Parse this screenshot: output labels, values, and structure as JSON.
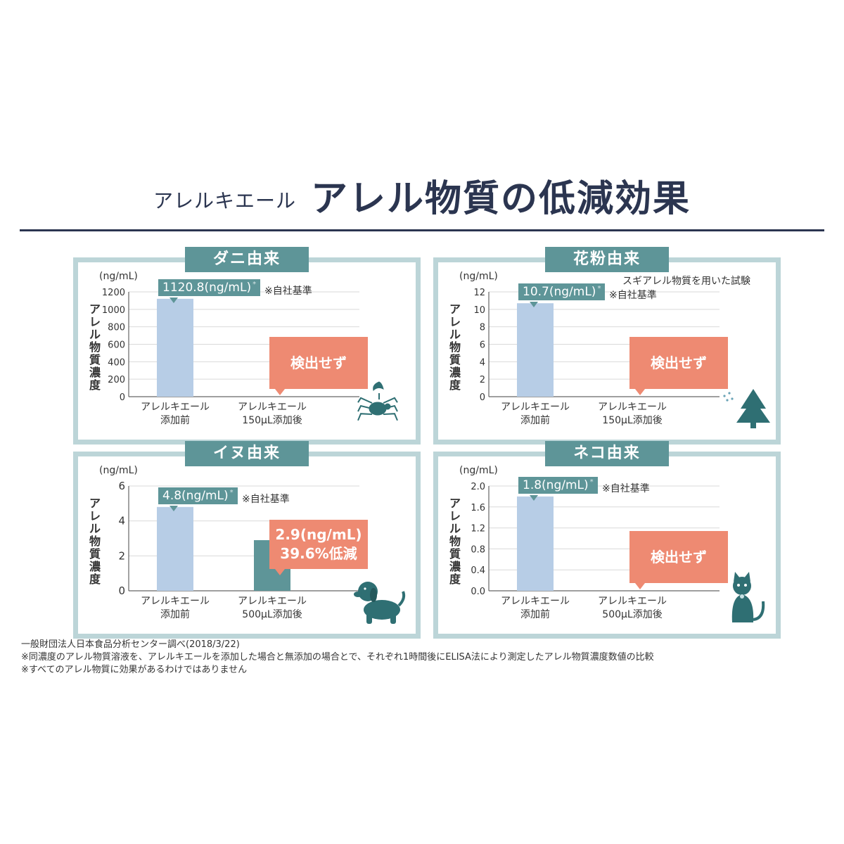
{
  "header": {
    "subtitle": "アレルキエール",
    "title": "アレル物質の低減効果"
  },
  "colors": {
    "navy": "#2b3550",
    "teal": "#5e9598",
    "panel_border": "#bcd5d8",
    "bar_before": "#b7cde6",
    "bar_after": "#5e9598",
    "badge": "#ee8a72"
  },
  "chart_data": [
    {
      "type": "bar",
      "title": "ダニ由来",
      "unit": "(ng/mL)",
      "ylabel": "アレル物質濃度",
      "ylim": [
        0,
        1200
      ],
      "yticks": [
        "1200",
        "1000",
        "800",
        "600",
        "400",
        "200",
        "0"
      ],
      "categories": [
        [
          "アレルキエール",
          "添加前"
        ],
        [
          "アレルキエール",
          "150μL添加後"
        ]
      ],
      "values": [
        1120.8,
        0
      ],
      "value_label": "1120.8(ng/mL)",
      "note": "※自社基準",
      "result": [
        "検出せず"
      ],
      "icon": "tick-icon"
    },
    {
      "type": "bar",
      "title": "花粉由来",
      "unit": "(ng/mL)",
      "ylabel": "アレル物質濃度",
      "ylim": [
        0,
        12
      ],
      "yticks": [
        "12",
        "10",
        "8",
        "6",
        "4",
        "2",
        "0"
      ],
      "categories": [
        [
          "アレルキエール",
          "添加前"
        ],
        [
          "アレルキエール",
          "150μL添加後"
        ]
      ],
      "values": [
        10.7,
        0
      ],
      "value_label": "10.7(ng/mL)",
      "note": "※自社基準",
      "subnote": "スギアレル物質を用いた試験",
      "result": [
        "検出せず"
      ],
      "icon": "tree-icon"
    },
    {
      "type": "bar",
      "title": "イヌ由来",
      "unit": "(ng/mL)",
      "ylabel": "アレル物質濃度",
      "ylim": [
        0,
        6
      ],
      "yticks": [
        "6",
        "4",
        "2",
        "0"
      ],
      "categories": [
        [
          "アレルキエール",
          "添加前"
        ],
        [
          "アレルキエール",
          "500μL添加後"
        ]
      ],
      "values": [
        4.8,
        2.9
      ],
      "value_label": "4.8(ng/mL)",
      "note": "※自社基準",
      "result": [
        "2.9(ng/mL)",
        "39.6%低減"
      ],
      "icon": "dog-icon"
    },
    {
      "type": "bar",
      "title": "ネコ由来",
      "unit": "(ng/mL)",
      "ylabel": "アレル物質濃度",
      "ylim": [
        0,
        2.0
      ],
      "yticks": [
        "2.0",
        "1.6",
        "1.2",
        "0.8",
        "0.4",
        "0.0"
      ],
      "categories": [
        [
          "アレルキエール",
          "添加前"
        ],
        [
          "アレルキエール",
          "500μL添加後"
        ]
      ],
      "values": [
        1.8,
        0
      ],
      "value_label": "1.8(ng/mL)",
      "note": "※自社基準",
      "result": [
        "検出せず"
      ],
      "icon": "cat-icon"
    }
  ],
  "footer": {
    "lines": [
      "一般財団法人日本食品分析センター調べ(2018/3/22)",
      "※同濃度のアレル物質溶液を、アレルキエールを添加した場合と無添加の場合とで、それぞれ1時間後にELISA法により測定したアレル物質濃度数値の比較",
      "※すべてのアレル物質に効果があるわけではありません"
    ]
  }
}
